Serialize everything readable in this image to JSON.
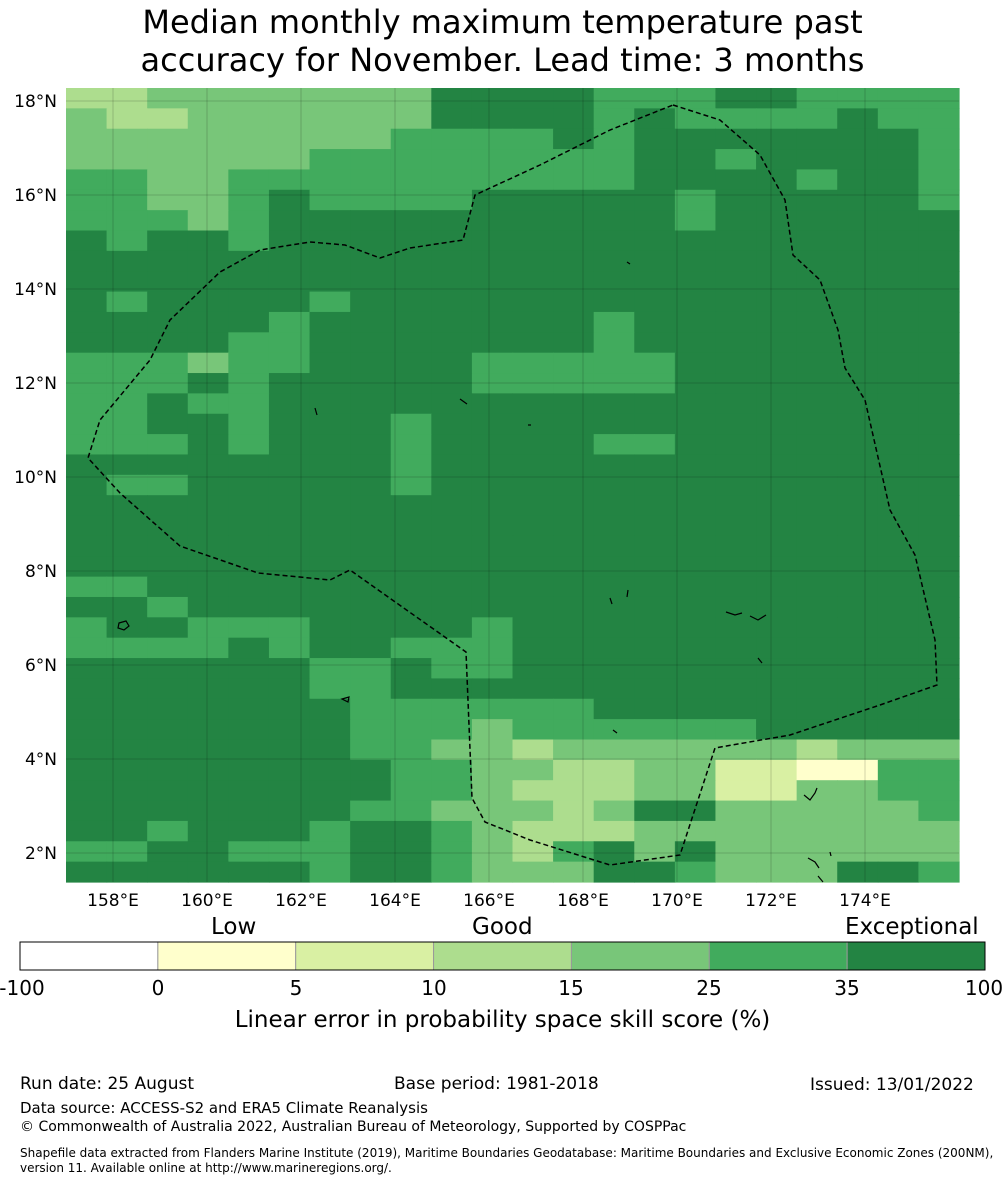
{
  "title_line1": "Median monthly maximum temperature past",
  "title_line2": "accuracy for November. Lead time: 3 months",
  "map": {
    "lat_ticks": [
      "18°N",
      "16°N",
      "14°N",
      "12°N",
      "10°N",
      "8°N",
      "6°N",
      "4°N",
      "2°N"
    ],
    "lon_ticks": [
      "158°E",
      "160°E",
      "162°E",
      "164°E",
      "166°E",
      "168°E",
      "170°E",
      "172°E",
      "174°E"
    ],
    "palette": [
      "#ffffff",
      "#ffffcc",
      "#d9f0a3",
      "#addd8e",
      "#78c679",
      "#41ab5d",
      "#238443"
    ],
    "grid": [
      "3344444446666555665555",
      "4334444446666565555655",
      "4444444455556566666665",
      "4444445555555566566665",
      "5544555555555566665665",
      "5544565555666665666665",
      "5554566666666665666666",
      "6566566666666666666666",
      "6666666666666666666666",
      "6666666666666666666666",
      "6566665666666666666666",
      "6666656666666566666666",
      "6666556666666566666666",
      "5554556666555556666666",
      "5556566666555556666666",
      "5565566666666666666666",
      "5566566656666666666666",
      "5556566656666556666666",
      "6666666656666666666666",
      "6556666656666666666666",
      "6666666666666666666666",
      "6666666666666666666666",
      "6666666666666666666666",
      "6666666666666666666666",
      "5566666666666666666666",
      "6656666666666666666666",
      "5665556666566666666666",
      "5555656655566666666666",
      "6666665565566666666666",
      "6666665566666666666666",
      "6666666555555666666666",
      "6666666555455555566666",
      "6666666554434444443444",
      "6666666655443344221155",
      "6666666655433344224455",
      "6666666554443466444445",
      "6656665665433344444444",
      "5566555665435646444444",
      "6666665665444665444665"
    ]
  },
  "colorbar": {
    "category_labels": [
      "Low",
      "Good",
      "Exceptional"
    ],
    "tick_labels": [
      "-100",
      "0",
      "5",
      "10",
      "15",
      "25",
      "35",
      "100"
    ],
    "title": "Linear error in probability space skill score (%)"
  },
  "footer": {
    "run_date": "Run date: 25 August",
    "base_period": "Base period: 1981-2018",
    "issued": "Issued: 13/01/2022",
    "data_source": "Data source: ACCESS-S2 and ERA5 Climate Reanalysis",
    "copyright": "© Commonwealth of Australia 2022, Australian Bureau of Meteorology, Supported by COSPPac",
    "shapefile": "Shapefile data extracted from Flanders Marine Institute (2019), Maritime Boundaries Geodatabase: Maritime Boundaries and Exclusive Economic Zones (200NM), version 11. Available online at http://www.marineregions.org/."
  }
}
